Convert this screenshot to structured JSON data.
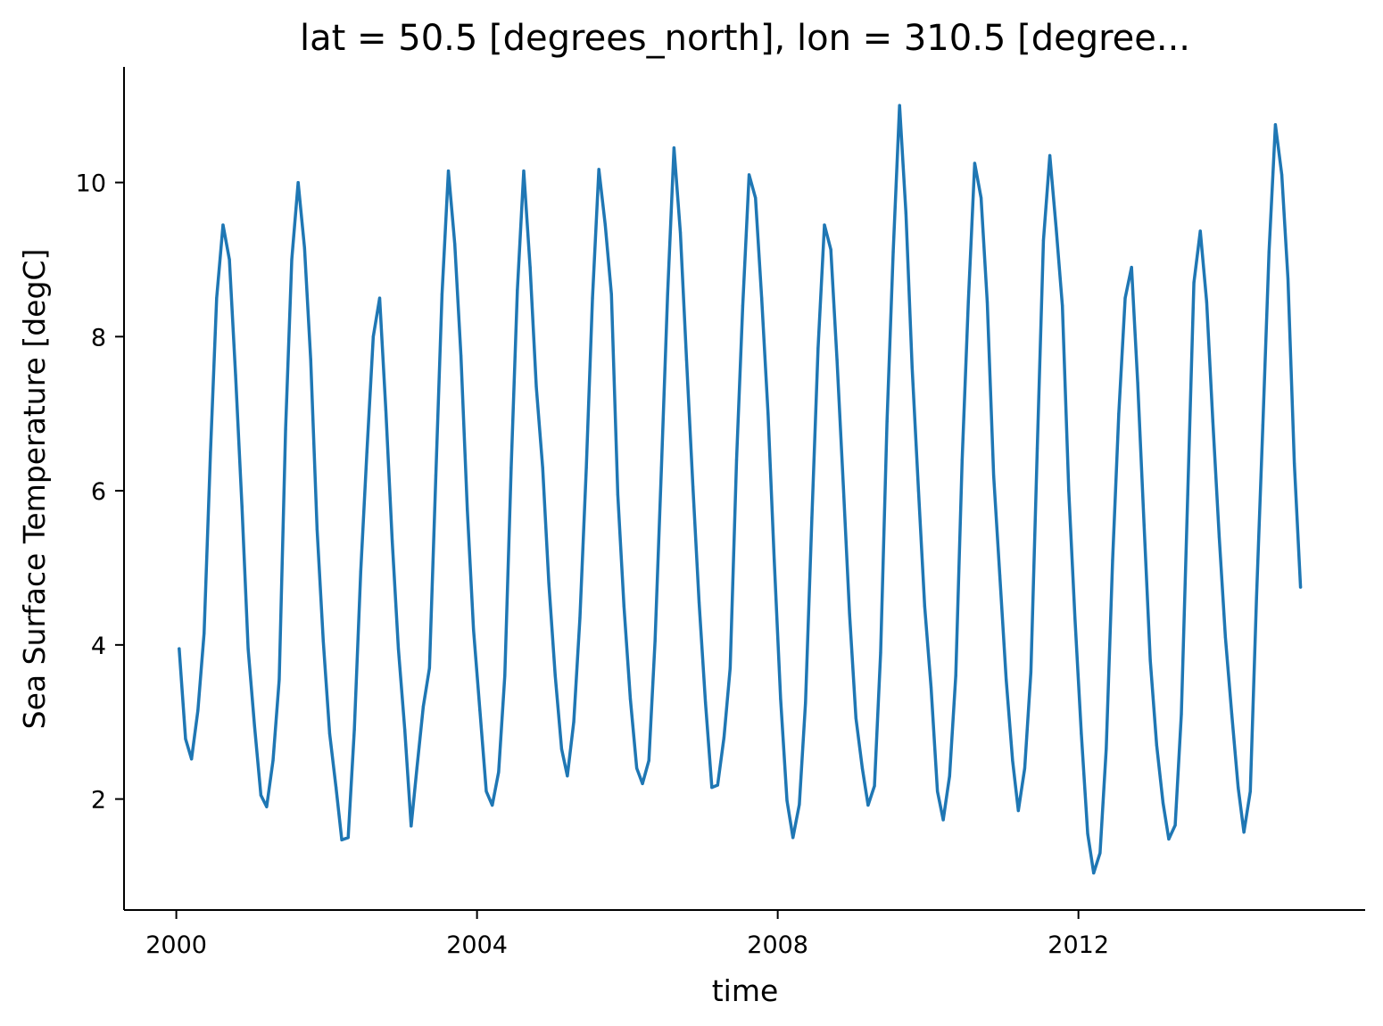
{
  "chart_data": {
    "type": "line",
    "title": "lat = 50.5 [degrees_north], lon = 310.5 [degree...",
    "xlabel": "time",
    "ylabel": "Sea Surface Temperature [degC]",
    "xlim": [
      "1999-04-22",
      "2015-10-25"
    ],
    "ylim": [
      0.56,
      11.5
    ],
    "xticks": [
      "2000",
      "2004",
      "2008",
      "2012"
    ],
    "yticks": [
      "2",
      "4",
      "6",
      "8",
      "10"
    ],
    "grid": false,
    "color": "#1f77b4",
    "x": [
      "2000-01-15",
      "2000-02-15",
      "2000-03-15",
      "2000-04-15",
      "2000-05-15",
      "2000-06-15",
      "2000-07-15",
      "2000-08-15",
      "2000-09-15",
      "2000-10-15",
      "2000-11-15",
      "2000-12-15",
      "2001-01-15",
      "2001-02-15",
      "2001-03-15",
      "2001-04-15",
      "2001-05-15",
      "2001-06-15",
      "2001-07-15",
      "2001-08-15",
      "2001-09-15",
      "2001-10-15",
      "2001-11-15",
      "2001-12-15",
      "2002-01-15",
      "2002-02-15",
      "2002-03-15",
      "2002-04-15",
      "2002-05-15",
      "2002-06-15",
      "2002-07-15",
      "2002-08-15",
      "2002-09-15",
      "2002-10-15",
      "2002-11-15",
      "2002-12-15",
      "2003-01-15",
      "2003-02-15",
      "2003-03-15",
      "2003-04-15",
      "2003-05-15",
      "2003-06-15",
      "2003-07-15",
      "2003-08-15",
      "2003-09-15",
      "2003-10-15",
      "2003-11-15",
      "2003-12-15",
      "2004-01-15",
      "2004-02-15",
      "2004-03-15",
      "2004-04-15",
      "2004-05-15",
      "2004-06-15",
      "2004-07-15",
      "2004-08-15",
      "2004-09-15",
      "2004-10-15",
      "2004-11-15",
      "2004-12-15",
      "2005-01-15",
      "2005-02-15",
      "2005-03-15",
      "2005-04-15",
      "2005-05-15",
      "2005-06-15",
      "2005-07-15",
      "2005-08-15",
      "2005-09-15",
      "2005-10-15",
      "2005-11-15",
      "2005-12-15",
      "2006-01-15",
      "2006-02-15",
      "2006-03-15",
      "2006-04-15",
      "2006-05-15",
      "2006-06-15",
      "2006-07-15",
      "2006-08-15",
      "2006-09-15",
      "2006-10-15",
      "2006-11-15",
      "2006-12-15",
      "2007-01-15",
      "2007-02-15",
      "2007-03-15",
      "2007-04-15",
      "2007-05-15",
      "2007-06-15",
      "2007-07-15",
      "2007-08-15",
      "2007-09-15",
      "2007-10-15",
      "2007-11-15",
      "2007-12-15",
      "2008-01-15",
      "2008-02-15",
      "2008-03-15",
      "2008-04-15",
      "2008-05-15",
      "2008-06-15",
      "2008-07-15",
      "2008-08-15",
      "2008-09-15",
      "2008-10-15",
      "2008-11-15",
      "2008-12-15",
      "2009-01-15",
      "2009-02-15",
      "2009-03-15",
      "2009-04-15",
      "2009-05-15",
      "2009-06-15",
      "2009-07-15",
      "2009-08-15",
      "2009-09-15",
      "2009-10-15",
      "2009-11-15",
      "2009-12-15",
      "2010-01-15",
      "2010-02-15",
      "2010-03-15",
      "2010-04-15",
      "2010-05-15",
      "2010-06-15",
      "2010-07-15",
      "2010-08-15",
      "2010-09-15",
      "2010-10-15",
      "2010-11-15",
      "2010-12-15",
      "2011-01-15",
      "2011-02-15",
      "2011-03-15",
      "2011-04-15",
      "2011-05-15",
      "2011-06-15",
      "2011-07-15",
      "2011-08-15",
      "2011-09-15",
      "2011-10-15",
      "2011-11-15",
      "2011-12-15",
      "2012-01-15",
      "2012-02-15",
      "2012-03-15",
      "2012-04-15",
      "2012-05-15",
      "2012-06-15",
      "2012-07-15",
      "2012-08-15",
      "2012-09-15",
      "2012-10-15",
      "2012-11-15",
      "2012-12-15",
      "2013-01-15",
      "2013-02-15",
      "2013-03-15",
      "2013-04-15",
      "2013-05-15",
      "2013-06-15",
      "2013-07-15",
      "2013-08-15",
      "2013-09-15",
      "2013-10-15",
      "2013-11-15",
      "2013-12-15",
      "2014-01-15",
      "2014-02-15",
      "2014-03-15",
      "2014-04-15",
      "2014-05-15",
      "2014-06-15",
      "2014-07-15",
      "2014-08-15",
      "2014-09-15",
      "2014-10-15",
      "2014-11-15",
      "2014-12-15"
    ],
    "series": [
      {
        "values": [
          3.95,
          2.78,
          2.52,
          3.15,
          4.15,
          6.5,
          8.5,
          9.45,
          9.0,
          7.5,
          5.8,
          3.95,
          2.95,
          2.05,
          1.9,
          2.5,
          3.55,
          6.8,
          9.0,
          10.0,
          9.15,
          7.7,
          5.5,
          4.05,
          2.85,
          2.15,
          1.47,
          1.5,
          2.9,
          4.95,
          6.5,
          8.0,
          8.5,
          7.05,
          5.35,
          3.95,
          2.9,
          1.65,
          2.4,
          3.2,
          3.7,
          6.2,
          8.55,
          10.15,
          9.2,
          7.75,
          5.75,
          4.2,
          3.15,
          2.1,
          1.92,
          2.35,
          3.6,
          6.3,
          8.6,
          10.15,
          8.9,
          7.35,
          6.3,
          4.8,
          3.6,
          2.65,
          2.3,
          3.0,
          4.35,
          6.3,
          8.5,
          10.17,
          9.45,
          8.55,
          5.95,
          4.5,
          3.3,
          2.4,
          2.2,
          2.5,
          4.05,
          6.3,
          8.55,
          10.45,
          9.35,
          7.7,
          6.05,
          4.55,
          3.25,
          2.15,
          2.18,
          2.8,
          3.7,
          6.4,
          8.4,
          10.1,
          9.8,
          8.5,
          7.0,
          5.1,
          3.3,
          1.98,
          1.5,
          1.93,
          3.25,
          5.65,
          7.85,
          9.45,
          9.13,
          7.7,
          6.05,
          4.4,
          3.05,
          2.4,
          1.92,
          2.17,
          3.9,
          6.9,
          9.1,
          11.0,
          9.6,
          7.6,
          6.0,
          4.5,
          3.45,
          2.1,
          1.73,
          2.3,
          3.6,
          6.4,
          8.45,
          10.25,
          9.8,
          8.45,
          6.2,
          4.9,
          3.55,
          2.5,
          1.85,
          2.4,
          3.65,
          6.55,
          9.25,
          10.35,
          9.4,
          8.4,
          6.0,
          4.35,
          2.85,
          1.55,
          1.04,
          1.3,
          2.65,
          5.1,
          7.0,
          8.5,
          8.9,
          7.4,
          5.55,
          3.8,
          2.7,
          1.95,
          1.48,
          1.66,
          3.1,
          5.95,
          8.7,
          9.37,
          8.45,
          6.9,
          5.4,
          4.1,
          3.1,
          2.15,
          1.57,
          2.1,
          4.6,
          6.85,
          9.1,
          10.75,
          10.1,
          8.75,
          6.35,
          4.75
        ]
      }
    ]
  }
}
